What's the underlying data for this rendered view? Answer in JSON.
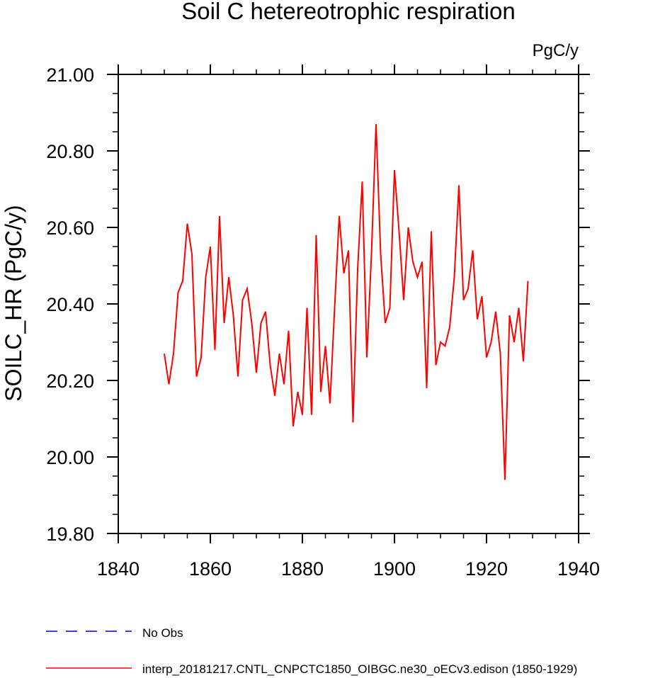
{
  "chart_data": {
    "type": "line",
    "title": "Soil C hetereotrophic respiration",
    "units_label": "PgC/y",
    "ylabel": "SOILC_HR  (PgC/y)",
    "xlabel": "",
    "xlim": [
      1840,
      1940
    ],
    "ylim": [
      19.8,
      21.0
    ],
    "xticks": [
      1840,
      1860,
      1880,
      1900,
      1920,
      1940
    ],
    "xtick_labels": [
      "1840",
      "1860",
      "1880",
      "1900",
      "1920",
      "1940"
    ],
    "yticks": [
      19.8,
      20.0,
      20.2,
      20.4,
      20.6,
      20.8,
      21.0
    ],
    "ytick_labels": [
      "19.80",
      "20.00",
      "20.20",
      "20.40",
      "20.60",
      "20.80",
      "21.00"
    ],
    "x_minor_step": 5,
    "y_minor_step": 0.05,
    "series": [
      {
        "name": "interp_20181217.CNTL_CNPCTC1850_OIBGC.ne30_oECv3.edison (1850-1929)",
        "color": "#ff0000",
        "style": "solid",
        "x_start": 1850,
        "values": [
          20.27,
          20.19,
          20.27,
          20.43,
          20.46,
          20.61,
          20.53,
          20.21,
          20.26,
          20.47,
          20.55,
          20.28,
          20.63,
          20.35,
          20.47,
          20.37,
          20.21,
          20.41,
          20.44,
          20.35,
          20.22,
          20.35,
          20.38,
          20.24,
          20.16,
          20.27,
          20.19,
          20.33,
          20.08,
          20.17,
          20.11,
          20.39,
          20.11,
          20.58,
          20.17,
          20.29,
          20.14,
          20.39,
          20.63,
          20.48,
          20.54,
          20.09,
          20.49,
          20.72,
          20.26,
          20.53,
          20.87,
          20.53,
          20.35,
          20.39,
          20.75,
          20.59,
          20.41,
          20.6,
          20.51,
          20.47,
          20.51,
          20.18,
          20.59,
          20.24,
          20.3,
          20.29,
          20.34,
          20.47,
          20.71,
          20.41,
          20.44,
          20.54,
          20.36,
          20.42,
          20.26,
          20.3,
          20.38,
          20.27,
          19.94,
          20.37,
          20.3,
          20.39,
          20.25,
          20.46
        ]
      },
      {
        "name": "No Obs",
        "color": "#0000cc",
        "style": "dashed",
        "values": []
      }
    ],
    "legend": {
      "placement": "bottom-left",
      "entries": [
        {
          "label": "No Obs",
          "color": "#0000cc",
          "style": "dashed"
        },
        {
          "label": "interp_20181217.CNTL_CNPCTC1850_OIBGC.ne30_oECv3.edison (1850-1929)",
          "color": "#ff0000",
          "style": "solid"
        }
      ]
    }
  }
}
